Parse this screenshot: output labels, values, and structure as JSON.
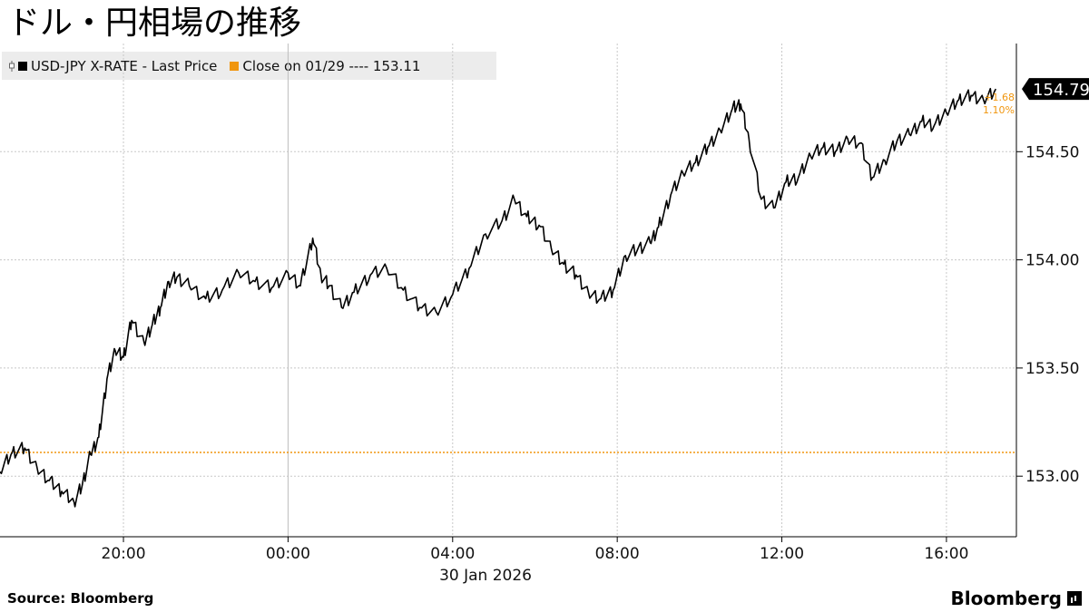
{
  "header": {
    "title": "ドル・円相場の推移"
  },
  "legend": {
    "series_label": "USD-JPY X-RATE - Last Price",
    "close_label": "Close on 01/29 ---- 153.11"
  },
  "footer": {
    "source": "Source:  Bloomberg",
    "brand": "Bloomberg"
  },
  "colors": {
    "series": "#000000",
    "close": "#f0960f",
    "grid": "#c8c8c8"
  },
  "chart_data": {
    "type": "line",
    "title": "ドル・円相場の推移",
    "xlabel": "30 Jan 2026",
    "ylabel": "",
    "x_ticks": [
      "20:00",
      "00:00",
      "04:00",
      "08:00",
      "12:00",
      "16:00"
    ],
    "x_tick_hours": [
      20,
      24,
      28,
      32,
      36,
      40
    ],
    "xlim_hours": [
      17.0,
      41.7
    ],
    "y_ticks": [
      "153.00",
      "153.50",
      "154.00",
      "154.50"
    ],
    "y_tick_values": [
      153.0,
      153.5,
      154.0,
      154.5
    ],
    "ylim": [
      152.72,
      155.0
    ],
    "grid": true,
    "legend_position": "top-left",
    "series": [
      {
        "name": "USD-JPY X-RATE - Last Price",
        "x_hours": [
          17.0,
          17.3,
          17.6,
          17.9,
          18.2,
          18.5,
          18.8,
          19.0,
          19.2,
          19.4,
          19.6,
          19.8,
          20.0,
          20.2,
          20.5,
          20.7,
          20.9,
          21.1,
          21.3,
          21.6,
          22.0,
          22.4,
          22.8,
          23.2,
          23.6,
          24.0,
          24.3,
          24.6,
          24.8,
          25.0,
          25.3,
          25.6,
          26.0,
          26.4,
          26.8,
          27.2,
          27.6,
          28.0,
          28.4,
          28.8,
          29.2,
          29.5,
          29.8,
          30.1,
          30.4,
          30.7,
          31.0,
          31.3,
          31.6,
          31.9,
          32.2,
          32.5,
          32.8,
          33.0,
          33.3,
          33.6,
          33.9,
          34.2,
          34.5,
          34.8,
          35.0,
          35.2,
          35.5,
          35.8,
          36.1,
          36.4,
          36.7,
          37.0,
          37.3,
          37.6,
          37.9,
          38.2,
          38.5,
          38.8,
          39.1,
          39.4,
          39.7,
          40.0,
          40.3,
          40.6,
          40.9,
          41.2
        ],
        "values": [
          153.02,
          153.11,
          153.13,
          153.04,
          152.98,
          152.93,
          152.88,
          152.96,
          153.1,
          153.18,
          153.45,
          153.58,
          153.55,
          153.72,
          153.62,
          153.7,
          153.78,
          153.9,
          153.92,
          153.88,
          153.82,
          153.86,
          153.94,
          153.9,
          153.87,
          153.94,
          153.88,
          154.1,
          153.93,
          153.88,
          153.78,
          153.85,
          153.93,
          153.96,
          153.86,
          153.78,
          153.76,
          153.84,
          153.96,
          154.12,
          154.18,
          154.28,
          154.2,
          154.16,
          154.05,
          153.98,
          153.93,
          153.85,
          153.82,
          153.86,
          154.02,
          154.05,
          154.08,
          154.15,
          154.3,
          154.4,
          154.45,
          154.52,
          154.6,
          154.7,
          154.72,
          154.56,
          154.28,
          154.24,
          154.36,
          154.38,
          154.48,
          154.52,
          154.5,
          154.56,
          154.54,
          154.38,
          154.46,
          154.55,
          154.58,
          154.64,
          154.62,
          154.68,
          154.74,
          154.76,
          154.74,
          154.79
        ]
      }
    ],
    "reference_line": {
      "label": "Close on 01/29",
      "value": 153.11
    },
    "last_value_label": "154.79",
    "change_label": "+1.68",
    "change_pct_label": "1.10%"
  }
}
